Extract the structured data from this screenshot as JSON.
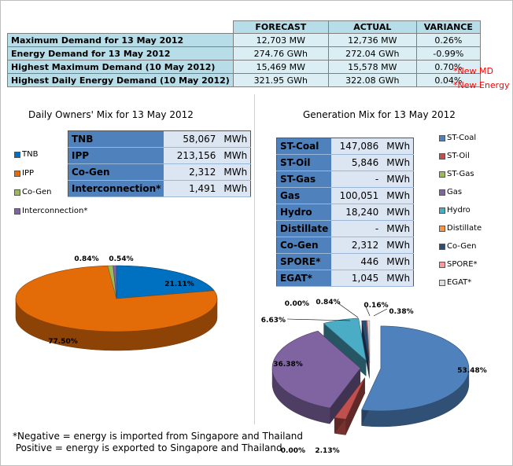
{
  "summary": {
    "headers": [
      "FORECAST",
      "ACTUAL",
      "VARIANCE"
    ],
    "rows": [
      {
        "label": "Maximum Demand for 13 May 2012",
        "forecast": "12,703  MW",
        "actual": "12,736  MW",
        "variance": "0.26%"
      },
      {
        "label": "Energy Demand for 13 May 2012",
        "forecast": "274.76  GWh",
        "actual": "272.04  GWh",
        "variance": "-0.99%"
      },
      {
        "label": "Highest Maximum Demand (10 May 2012)",
        "forecast": "15,469  MW",
        "actual": "15,578  MW",
        "variance": "0.70%"
      },
      {
        "label": "Highest Daily Energy Demand (10 May 2012)",
        "forecast": "321.95  GWh",
        "actual": "322.08  GWh",
        "variance": "0.04%"
      }
    ],
    "notes": [
      "*New MD",
      "*New Energy"
    ]
  },
  "owners": {
    "title": "Daily Owners' Mix for 13 May 2012",
    "rows": [
      {
        "name": "TNB",
        "value": "58,067",
        "unit": "MWh"
      },
      {
        "name": "IPP",
        "value": "213,156",
        "unit": "MWh"
      },
      {
        "name": "Co-Gen",
        "value": "2,312",
        "unit": "MWh"
      },
      {
        "name": "Interconnection*",
        "value": "1,491",
        "unit": "MWh"
      }
    ]
  },
  "generation": {
    "title": "Generation Mix for 13 May 2012",
    "rows": [
      {
        "name": "ST-Coal",
        "value": "147,086",
        "unit": "MWh"
      },
      {
        "name": "ST-Oil",
        "value": "5,846",
        "unit": "MWh"
      },
      {
        "name": "ST-Gas",
        "value": "-",
        "unit": "MWh"
      },
      {
        "name": "Gas",
        "value": "100,051",
        "unit": "MWh"
      },
      {
        "name": "Hydro",
        "value": "18,240",
        "unit": "MWh"
      },
      {
        "name": "Distillate",
        "value": "-",
        "unit": "MWh"
      },
      {
        "name": "Co-Gen",
        "value": "2,312",
        "unit": "MWh"
      },
      {
        "name": "SPORE*",
        "value": "446",
        "unit": "MWh"
      },
      {
        "name": "EGAT*",
        "value": "1,045",
        "unit": "MWh"
      }
    ]
  },
  "footnote": {
    "line1": "*Negative = energy is imported from Singapore and Thailand",
    "line2": " Positive = energy is exported to Singapore and Thailand"
  },
  "chart_data": [
    {
      "type": "pie",
      "title": "Daily Owners' Mix for 13 May 2012",
      "legend_position": "top-left",
      "labels": [
        "TNB",
        "IPP",
        "Co-Gen",
        "Interconnection*"
      ],
      "values": [
        21.11,
        77.5,
        0.84,
        0.54
      ],
      "value_labels": [
        "21.11%",
        "77.50%",
        "0.84%",
        "0.54%"
      ],
      "colors": [
        "#0070c0",
        "#e36c09",
        "#9bbb59",
        "#8064a2"
      ]
    },
    {
      "type": "pie",
      "title": "Generation Mix for 13 May 2012",
      "legend_position": "right",
      "labels": [
        "ST-Coal",
        "ST-Oil",
        "ST-Gas",
        "Gas",
        "Hydro",
        "Distillate",
        "Co-Gen",
        "SPORE*",
        "EGAT*"
      ],
      "values": [
        53.48,
        2.13,
        0.0,
        36.38,
        6.63,
        0.0,
        0.84,
        0.16,
        0.38
      ],
      "value_labels": [
        "53.48%",
        "2.13%",
        "0.00%",
        "36.38%",
        "6.63%",
        "0.00%",
        "0.84%",
        "0.16%",
        "0.38%"
      ],
      "colors": [
        "#4f81bd",
        "#c0504d",
        "#9bbb59",
        "#8064a2",
        "#4bacc6",
        "#f79646",
        "#2c4d75",
        "#ff9999",
        "#e0e0e0"
      ]
    }
  ]
}
